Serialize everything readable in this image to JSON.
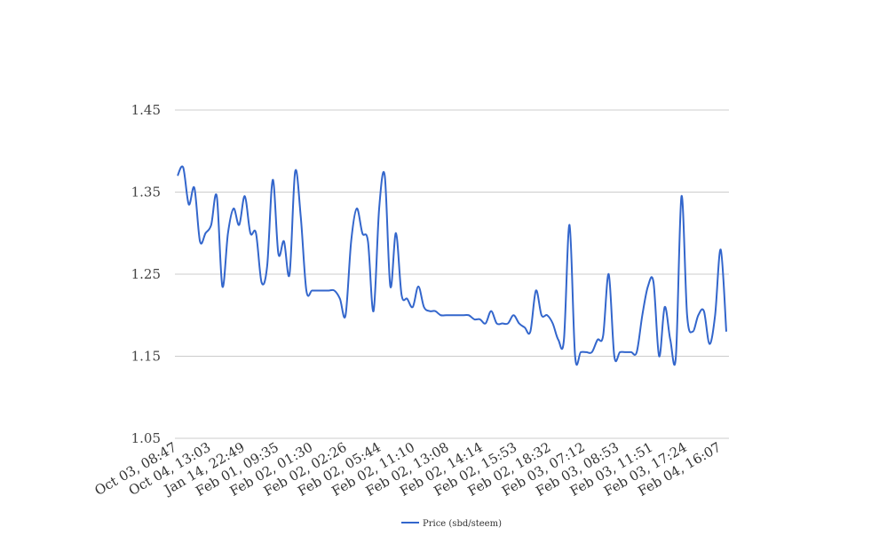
{
  "chart_data": {
    "type": "line",
    "title": "",
    "xlabel": "",
    "ylabel": "",
    "ylim": [
      1.05,
      1.45
    ],
    "y_ticks": [
      "1.45",
      "1.35",
      "1.25",
      "1.15",
      "1.05"
    ],
    "y_tick_values": [
      1.45,
      1.35,
      1.25,
      1.15,
      1.05
    ],
    "x_tick_labels": [
      "Oct 03, 08:47",
      "Oct 04, 13:03",
      "Jan 14, 22:49",
      "Feb 01, 09:35",
      "Feb 02, 01:30",
      "Feb 02, 02:26",
      "Feb 02, 05:44",
      "Feb 02, 11:10",
      "Feb 02, 13:08",
      "Feb 02, 14:14",
      "Feb 02, 15:53",
      "Feb 02, 18:32",
      "Feb 03, 07:12",
      "Feb 03, 08:53",
      "Feb 03, 11:51",
      "Feb 03, 17:24",
      "Feb 04, 16:07"
    ],
    "grid": true,
    "legend_position": "bottom",
    "series": [
      {
        "name": "Price (sbd/steem)",
        "color": "#3366cc",
        "values": [
          1.37,
          1.38,
          1.335,
          1.355,
          1.29,
          1.3,
          1.31,
          1.345,
          1.235,
          1.3,
          1.33,
          1.31,
          1.345,
          1.3,
          1.3,
          1.24,
          1.26,
          1.365,
          1.275,
          1.29,
          1.25,
          1.375,
          1.32,
          1.23,
          1.23,
          1.23,
          1.23,
          1.23,
          1.23,
          1.22,
          1.2,
          1.29,
          1.33,
          1.3,
          1.29,
          1.205,
          1.33,
          1.37,
          1.235,
          1.3,
          1.225,
          1.22,
          1.21,
          1.235,
          1.21,
          1.205,
          1.205,
          1.2,
          1.2,
          1.2,
          1.2,
          1.2,
          1.2,
          1.195,
          1.195,
          1.19,
          1.205,
          1.19,
          1.19,
          1.19,
          1.2,
          1.19,
          1.185,
          1.18,
          1.23,
          1.2,
          1.2,
          1.19,
          1.17,
          1.17,
          1.31,
          1.15,
          1.155,
          1.155,
          1.155,
          1.17,
          1.175,
          1.25,
          1.15,
          1.155,
          1.155,
          1.155,
          1.155,
          1.2,
          1.235,
          1.24,
          1.15,
          1.21,
          1.17,
          1.15,
          1.345,
          1.2,
          1.18,
          1.2,
          1.205,
          1.165,
          1.2,
          1.28,
          1.18
        ]
      }
    ]
  }
}
